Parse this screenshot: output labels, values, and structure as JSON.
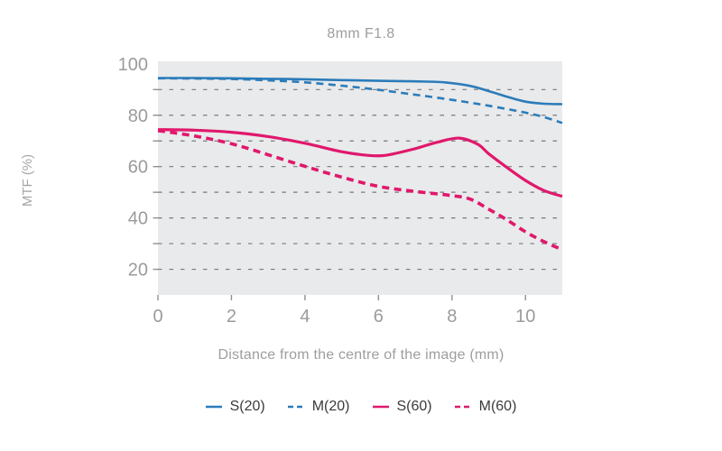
{
  "chart": {
    "title": "8mm F1.8"
  },
  "colors": {
    "blue": "#2b7cba",
    "pink": "#e0186c",
    "plot_background": "#e9eaeb",
    "gridline": "#75797d",
    "tick": "#8d9194",
    "axis_text": "#9b9b9b",
    "title_text": "#9e9e9e",
    "legend_text": "#3b3b3b"
  },
  "chart_data": {
    "type": "line",
    "title": "8mm F1.8",
    "xlabel": "Distance from the centre of the image (mm)",
    "ylabel": "MTF (%)",
    "xlim": [
      0,
      11
    ],
    "ylim": [
      10,
      101
    ],
    "xticks": [
      0,
      2,
      4,
      6,
      8,
      10
    ],
    "yticks_labeled": [
      100,
      80,
      60,
      40,
      20
    ],
    "gridlines_y": [
      90,
      80,
      70,
      60,
      50,
      40,
      30,
      20
    ],
    "grid": true,
    "plot_background": "#e9eaeb",
    "legend_position": "bottom",
    "series": [
      {
        "name": "S(20)",
        "color": "#2b7cba",
        "style": "solid",
        "stroke_width": 2.6,
        "points": [
          [
            0,
            94.5
          ],
          [
            1,
            94.5
          ],
          [
            2,
            94.4
          ],
          [
            3,
            94.2
          ],
          [
            4,
            94.0
          ],
          [
            5,
            93.7
          ],
          [
            6,
            93.4
          ],
          [
            7,
            93.2
          ],
          [
            7.8,
            92.8
          ],
          [
            8.5,
            91.4
          ],
          [
            9,
            89.4
          ],
          [
            9.5,
            87.2
          ],
          [
            10,
            85.3
          ],
          [
            10.5,
            84.5
          ],
          [
            11,
            84.3
          ]
        ]
      },
      {
        "name": "M(20)",
        "color": "#2b7cba",
        "style": "dashed",
        "stroke_width": 2.6,
        "points": [
          [
            0,
            94.4
          ],
          [
            1,
            94.3
          ],
          [
            2,
            94.1
          ],
          [
            3,
            93.6
          ],
          [
            4,
            92.8
          ],
          [
            5,
            91.5
          ],
          [
            6,
            89.9
          ],
          [
            7,
            88.0
          ],
          [
            8,
            86.0
          ],
          [
            9,
            83.7
          ],
          [
            10,
            81.0
          ],
          [
            10.5,
            79.3
          ],
          [
            11,
            77.0
          ]
        ]
      },
      {
        "name": "S(60)",
        "color": "#e0186c",
        "style": "solid",
        "stroke_width": 3.2,
        "points": [
          [
            0,
            74.4
          ],
          [
            1,
            74.2
          ],
          [
            2,
            73.4
          ],
          [
            3,
            71.7
          ],
          [
            4,
            69.1
          ],
          [
            5,
            65.8
          ],
          [
            5.7,
            64.4
          ],
          [
            6.2,
            64.4
          ],
          [
            7,
            67.0
          ],
          [
            7.6,
            69.5
          ],
          [
            8.2,
            71.1
          ],
          [
            8.7,
            68.7
          ],
          [
            9,
            65.0
          ],
          [
            9.5,
            59.6
          ],
          [
            10,
            54.6
          ],
          [
            10.5,
            50.7
          ],
          [
            11,
            48.4
          ]
        ]
      },
      {
        "name": "M(60)",
        "color": "#e0186c",
        "style": "dashed",
        "stroke_width": 3.6,
        "points": [
          [
            0,
            74.0
          ],
          [
            1,
            71.9
          ],
          [
            2,
            68.9
          ],
          [
            3,
            64.6
          ],
          [
            4,
            60.1
          ],
          [
            5,
            55.9
          ],
          [
            6,
            52.3
          ],
          [
            7,
            50.3
          ],
          [
            8,
            48.7
          ],
          [
            8.5,
            47.3
          ],
          [
            9,
            43.4
          ],
          [
            9.5,
            39.2
          ],
          [
            10,
            34.6
          ],
          [
            10.5,
            30.8
          ],
          [
            11,
            27.6
          ]
        ]
      }
    ]
  }
}
